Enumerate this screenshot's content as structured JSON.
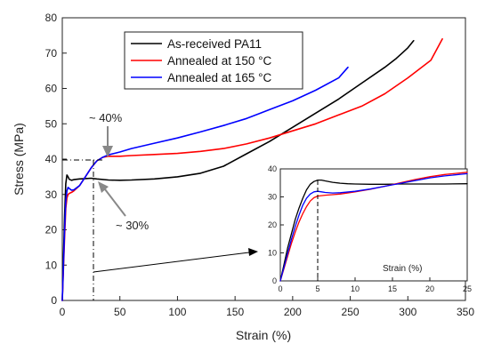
{
  "chart_data": [
    {
      "type": "line",
      "xlabel": "Strain (%)",
      "ylabel": "Stress (MPa)",
      "xlim": [
        0,
        350
      ],
      "ylim": [
        0,
        80
      ],
      "xticks": [
        "0",
        "50",
        "100",
        "150",
        "200",
        "250",
        "300",
        "350"
      ],
      "yticks": [
        "0",
        "10",
        "20",
        "30",
        "40",
        "50",
        "60",
        "70",
        "80"
      ],
      "grid": false,
      "legend_placement": "top-center",
      "series": [
        {
          "name": "As-received PA11",
          "color": "#000000",
          "x": [
            0,
            1,
            2,
            3,
            4,
            5,
            6,
            8,
            10,
            15,
            20,
            25,
            30,
            40,
            50,
            60,
            80,
            100,
            120,
            140,
            160,
            180,
            200,
            220,
            240,
            260,
            280,
            290,
            295,
            300,
            305
          ],
          "y": [
            0,
            12,
            24,
            33,
            35.5,
            35,
            34.3,
            34,
            34.2,
            34.4,
            34.5,
            34.6,
            34.4,
            34.1,
            34,
            34.1,
            34.4,
            35,
            36,
            38,
            41.5,
            45,
            49,
            53,
            57,
            61.5,
            66,
            68.5,
            70,
            71.5,
            73.5
          ]
        },
        {
          "name": "Annealed at 150 °C",
          "color": "#ff0000",
          "x": [
            0,
            1,
            2,
            3,
            4,
            5,
            6,
            8,
            10,
            15,
            20,
            25,
            30,
            35,
            40,
            50,
            60,
            80,
            100,
            120,
            140,
            160,
            180,
            200,
            220,
            240,
            260,
            280,
            300,
            320,
            330
          ],
          "y": [
            0,
            9,
            18,
            26,
            29,
            30,
            30.3,
            30.6,
            31,
            32.5,
            35,
            37.5,
            39.5,
            40.5,
            40.8,
            40.8,
            41,
            41.3,
            41.6,
            42.2,
            43,
            44.3,
            46,
            48,
            50,
            52.5,
            55,
            58.5,
            63,
            68,
            74
          ]
        },
        {
          "name": "Annealed at 165 °C",
          "color": "#0000ff",
          "x": [
            0,
            1,
            2,
            3,
            4,
            5,
            6,
            8,
            10,
            15,
            20,
            25,
            30,
            35,
            40,
            50,
            60,
            80,
            100,
            120,
            140,
            160,
            180,
            200,
            220,
            240,
            248
          ],
          "y": [
            0,
            10,
            20,
            28,
            31,
            32,
            31.7,
            31.2,
            31.3,
            32.5,
            35,
            37.5,
            39.5,
            40.5,
            41.2,
            42,
            43,
            44.5,
            46,
            47.7,
            49.5,
            51.5,
            54,
            56.5,
            59.5,
            63,
            66
          ]
        }
      ],
      "annotations": [
        "~ 40%",
        "~ 30%"
      ]
    },
    {
      "type": "line",
      "xlabel": "Strain (%)",
      "ylabel": "",
      "xlim": [
        0,
        25
      ],
      "ylim": [
        0,
        40
      ],
      "xticks": [
        "0",
        "5",
        "10",
        "15",
        "20",
        "25"
      ],
      "yticks": [
        "0",
        "10",
        "20",
        "30",
        "40"
      ],
      "grid": false,
      "series": [
        {
          "color": "#000000",
          "x": [
            0,
            0.5,
            1,
            1.5,
            2,
            2.5,
            3,
            3.5,
            4,
            4.5,
            5,
            5.5,
            6,
            7,
            8,
            9,
            10,
            12,
            14,
            16,
            18,
            20,
            22,
            25
          ],
          "y": [
            0,
            6,
            12,
            17,
            22,
            26,
            29.5,
            32.5,
            34.5,
            35.5,
            36,
            36,
            35.7,
            35.2,
            34.9,
            34.7,
            34.6,
            34.5,
            34.5,
            34.6,
            34.6,
            34.6,
            34.6,
            34.7
          ]
        },
        {
          "color": "#ff0000",
          "x": [
            0,
            0.5,
            1,
            1.5,
            2,
            2.5,
            3,
            3.5,
            4,
            4.5,
            5,
            6,
            7,
            8,
            10,
            12,
            14,
            16,
            18,
            20,
            22,
            25
          ],
          "y": [
            0,
            4.5,
            9,
            13.5,
            17.5,
            21,
            24,
            26.5,
            28.5,
            29.7,
            30.3,
            30.6,
            30.8,
            31,
            31.8,
            32.7,
            33.8,
            35,
            36.2,
            37.2,
            38,
            38.8
          ]
        },
        {
          "color": "#0000ff",
          "x": [
            0,
            0.5,
            1,
            1.5,
            2,
            2.5,
            3,
            3.5,
            4,
            4.5,
            5,
            5.5,
            6,
            7,
            8,
            10,
            12,
            14,
            16,
            18,
            20,
            22,
            25
          ],
          "y": [
            0,
            5,
            10,
            15,
            19.5,
            23.5,
            27,
            29.5,
            31,
            31.8,
            32,
            31.8,
            31.6,
            31.4,
            31.5,
            32,
            32.8,
            33.8,
            34.8,
            35.8,
            36.8,
            37.5,
            38.3
          ]
        }
      ]
    }
  ]
}
